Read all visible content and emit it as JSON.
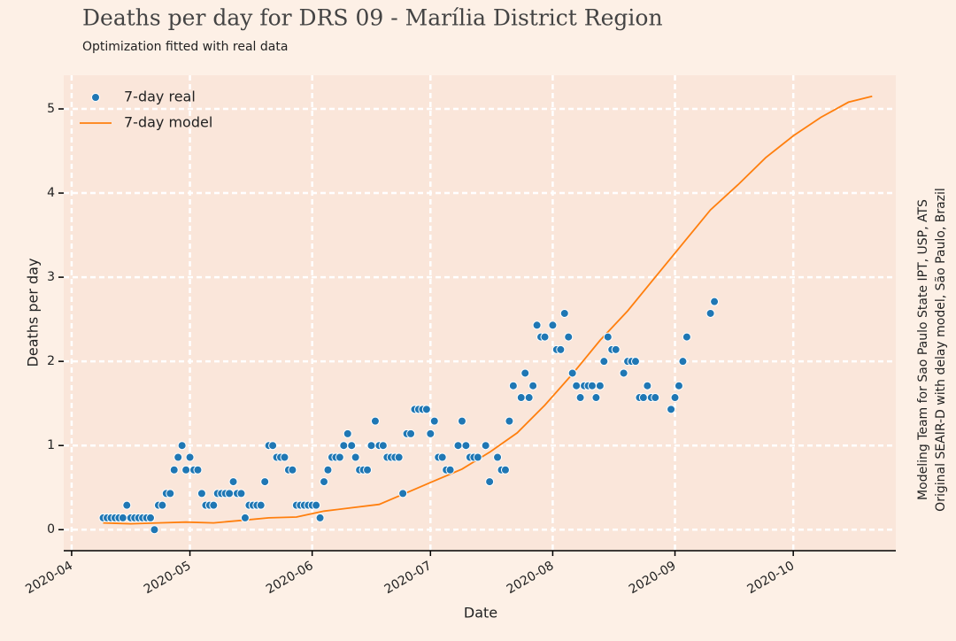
{
  "chart_data": {
    "type": "scatter-line",
    "title": "Deaths per day for DRS 09 - Marília District Region",
    "subtitle": "Optimization fitted with real data",
    "xlabel": "Date",
    "ylabel": "Deaths per day",
    "side_note": [
      "Modeling Team for Sao Paulo State IPT, USP, ATS",
      "Original SEAIR-D with delay model, São Paulo, Brazil"
    ],
    "xlim": [
      "2020-03-30",
      "2020-10-27"
    ],
    "ylim": [
      -0.25,
      5.4
    ],
    "xticks": [
      "2020-04",
      "2020-05",
      "2020-06",
      "2020-07",
      "2020-08",
      "2020-09",
      "2020-10"
    ],
    "yticks": [
      0,
      1,
      2,
      3,
      4,
      5
    ],
    "grid": true,
    "legend": "upper left",
    "series": [
      {
        "name": "7-day real",
        "kind": "scatter",
        "color": "#1f77b4",
        "x": [
          "2020-04-09",
          "2020-04-10",
          "2020-04-11",
          "2020-04-12",
          "2020-04-13",
          "2020-04-14",
          "2020-04-15",
          "2020-04-16",
          "2020-04-17",
          "2020-04-18",
          "2020-04-19",
          "2020-04-20",
          "2020-04-21",
          "2020-04-22",
          "2020-04-23",
          "2020-04-24",
          "2020-04-25",
          "2020-04-26",
          "2020-04-27",
          "2020-04-28",
          "2020-04-29",
          "2020-04-30",
          "2020-05-01",
          "2020-05-02",
          "2020-05-03",
          "2020-05-04",
          "2020-05-05",
          "2020-05-06",
          "2020-05-07",
          "2020-05-08",
          "2020-05-09",
          "2020-05-10",
          "2020-05-11",
          "2020-05-12",
          "2020-05-13",
          "2020-05-14",
          "2020-05-15",
          "2020-05-16",
          "2020-05-17",
          "2020-05-18",
          "2020-05-19",
          "2020-05-20",
          "2020-05-21",
          "2020-05-22",
          "2020-05-23",
          "2020-05-24",
          "2020-05-25",
          "2020-05-26",
          "2020-05-27",
          "2020-05-28",
          "2020-05-29",
          "2020-05-30",
          "2020-05-31",
          "2020-06-01",
          "2020-06-02",
          "2020-06-03",
          "2020-06-04",
          "2020-06-05",
          "2020-06-06",
          "2020-06-07",
          "2020-06-08",
          "2020-06-09",
          "2020-06-10",
          "2020-06-11",
          "2020-06-12",
          "2020-06-13",
          "2020-06-14",
          "2020-06-15",
          "2020-06-16",
          "2020-06-17",
          "2020-06-18",
          "2020-06-19",
          "2020-06-20",
          "2020-06-21",
          "2020-06-22",
          "2020-06-23",
          "2020-06-24",
          "2020-06-25",
          "2020-06-26",
          "2020-06-27",
          "2020-06-28",
          "2020-06-29",
          "2020-06-30",
          "2020-07-01",
          "2020-07-02",
          "2020-07-03",
          "2020-07-04",
          "2020-07-05",
          "2020-07-06",
          "2020-07-08",
          "2020-07-09",
          "2020-07-10",
          "2020-07-11",
          "2020-07-12",
          "2020-07-13",
          "2020-07-15",
          "2020-07-16",
          "2020-07-18",
          "2020-07-19",
          "2020-07-20",
          "2020-07-21",
          "2020-07-22",
          "2020-07-24",
          "2020-07-25",
          "2020-07-26",
          "2020-07-27",
          "2020-07-28",
          "2020-07-29",
          "2020-07-30",
          "2020-08-01",
          "2020-08-02",
          "2020-08-03",
          "2020-08-04",
          "2020-08-05",
          "2020-08-06",
          "2020-08-07",
          "2020-08-08",
          "2020-08-09",
          "2020-08-10",
          "2020-08-11",
          "2020-08-12",
          "2020-08-13",
          "2020-08-14",
          "2020-08-15",
          "2020-08-16",
          "2020-08-17",
          "2020-08-19",
          "2020-08-20",
          "2020-08-21",
          "2020-08-22",
          "2020-08-23",
          "2020-08-24",
          "2020-08-25",
          "2020-08-26",
          "2020-08-27",
          "2020-08-31",
          "2020-09-01",
          "2020-09-02",
          "2020-09-03",
          "2020-09-04",
          "2020-09-10",
          "2020-09-11"
        ],
        "values": [
          0.14,
          0.14,
          0.14,
          0.14,
          0.14,
          0.14,
          0.29,
          0.14,
          0.14,
          0.14,
          0.14,
          0.14,
          0.14,
          0,
          0.29,
          0.29,
          0.43,
          0.43,
          0.71,
          0.86,
          1.0,
          0.71,
          0.86,
          0.71,
          0.71,
          0.43,
          0.29,
          0.29,
          0.29,
          0.43,
          0.43,
          0.43,
          0.43,
          0.57,
          0.43,
          0.43,
          0.14,
          0.29,
          0.29,
          0.29,
          0.29,
          0.57,
          1.0,
          1.0,
          0.86,
          0.86,
          0.86,
          0.71,
          0.71,
          0.29,
          0.29,
          0.29,
          0.29,
          0.29,
          0.29,
          0.14,
          0.57,
          0.71,
          0.86,
          0.86,
          0.86,
          1.0,
          1.14,
          1.0,
          0.86,
          0.71,
          0.71,
          0.71,
          1.0,
          1.29,
          1.0,
          1.0,
          0.86,
          0.86,
          0.86,
          0.86,
          0.43,
          1.14,
          1.14,
          1.43,
          1.43,
          1.43,
          1.43,
          1.14,
          1.29,
          0.86,
          0.86,
          0.71,
          0.71,
          1.0,
          1.29,
          1.0,
          0.86,
          0.86,
          0.86,
          1.0,
          0.57,
          0.86,
          0.71,
          0.71,
          1.29,
          1.71,
          1.57,
          1.86,
          1.57,
          1.71,
          2.43,
          2.29,
          2.29,
          2.43,
          2.14,
          2.14,
          2.57,
          2.29,
          1.86,
          1.71,
          1.57,
          1.71,
          1.71,
          1.71,
          1.57,
          1.71,
          2.0,
          2.29,
          2.14,
          2.14,
          1.86,
          2.0,
          2.0,
          2.0,
          1.57,
          1.57,
          1.71,
          1.57,
          1.57,
          1.43,
          1.57,
          1.71,
          2.0,
          2.29,
          2.57,
          2.71
        ]
      },
      {
        "name": "7-day model",
        "kind": "line",
        "color": "#ff7f0e",
        "x": [
          "2020-04-09",
          "2020-04-16",
          "2020-04-23",
          "2020-04-30",
          "2020-05-07",
          "2020-05-14",
          "2020-05-21",
          "2020-05-28",
          "2020-06-04",
          "2020-06-11",
          "2020-06-18",
          "2020-06-25",
          "2020-07-02",
          "2020-07-09",
          "2020-07-16",
          "2020-07-23",
          "2020-07-30",
          "2020-08-06",
          "2020-08-13",
          "2020-08-20",
          "2020-08-27",
          "2020-09-03",
          "2020-09-10",
          "2020-09-17",
          "2020-09-24",
          "2020-10-01",
          "2020-10-08",
          "2020-10-15",
          "2020-10-21"
        ],
        "values": [
          0.08,
          0.07,
          0.08,
          0.09,
          0.08,
          0.11,
          0.14,
          0.15,
          0.22,
          0.26,
          0.3,
          0.44,
          0.58,
          0.72,
          0.92,
          1.15,
          1.48,
          1.85,
          2.25,
          2.6,
          3.0,
          3.4,
          3.8,
          4.1,
          4.42,
          4.68,
          4.9,
          5.08,
          5.15
        ]
      }
    ]
  }
}
